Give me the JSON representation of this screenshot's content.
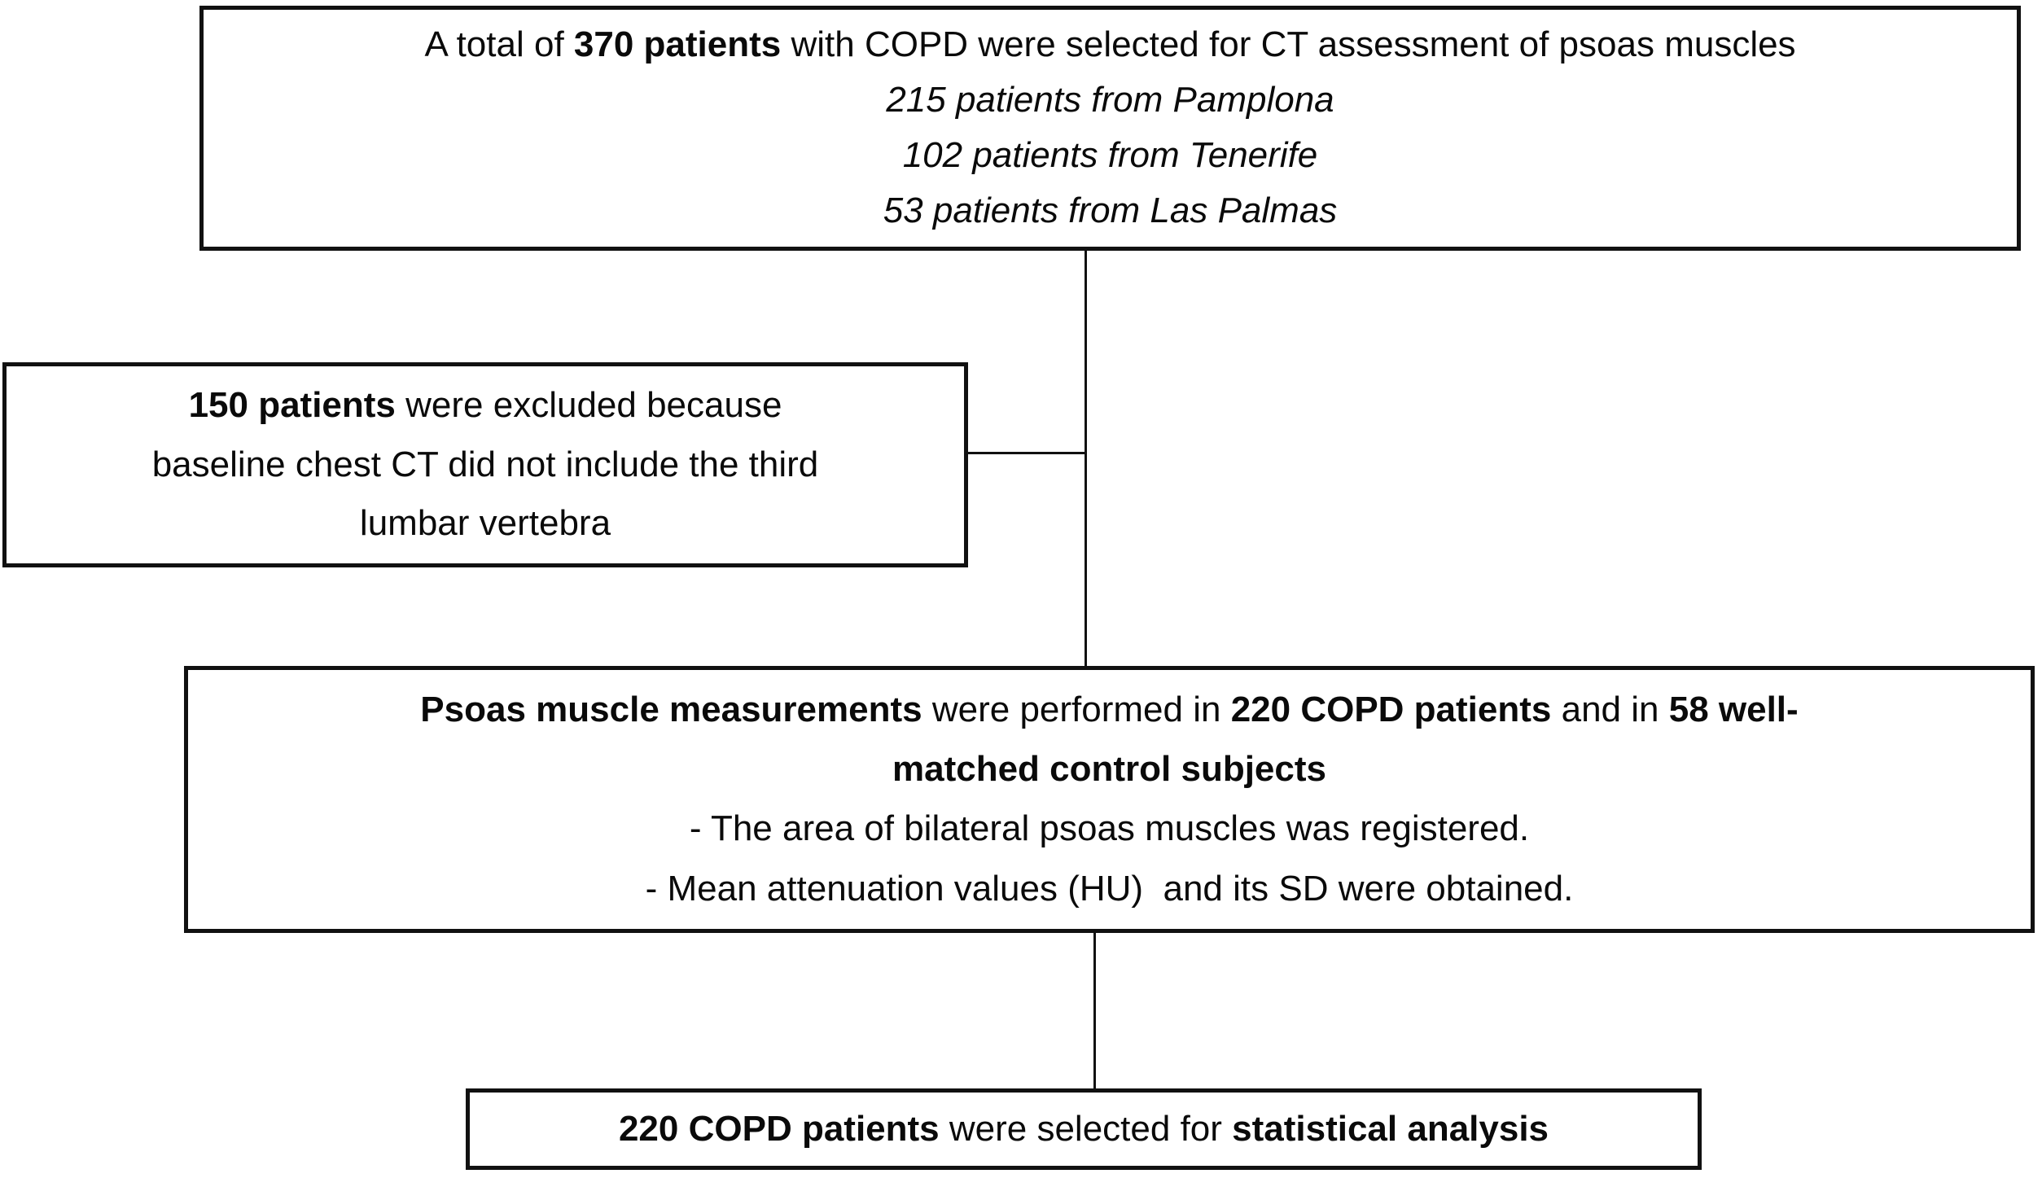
{
  "figure": {
    "type": "patient-selection-flowchart",
    "background_color": "#ffffff",
    "line_color": "#111111",
    "boxes": {
      "total": {
        "line1": {
          "pre": "A total of ",
          "bold1": "370 patients",
          "post": " with COPD were selected for CT assessment of psoas muscles"
        },
        "sources": [
          "215 patients from Pamplona",
          "102 patients from Tenerife",
          "53 patients from Las Palmas"
        ]
      },
      "exclusion": {
        "bold1": "150 patients",
        "rest1": " were excluded because",
        "line2": "baseline chest CT did not include the third",
        "line3": "lumbar vertebra"
      },
      "measurements": {
        "bold1": "Psoas muscle measurements",
        "mid1": " were performed in ",
        "bold2": "220 COPD patients",
        "mid2": " and in ",
        "bold3": "58 well-",
        "line2_bold": "matched control subjects",
        "bullet1": "- The area of bilateral psoas muscles was registered.",
        "bullet2": "- Mean attenuation values (HU)  and its SD were obtained."
      },
      "final": {
        "bold1": "220 COPD patients",
        "mid": " were selected for ",
        "bold2": "statistical analysis"
      }
    }
  }
}
